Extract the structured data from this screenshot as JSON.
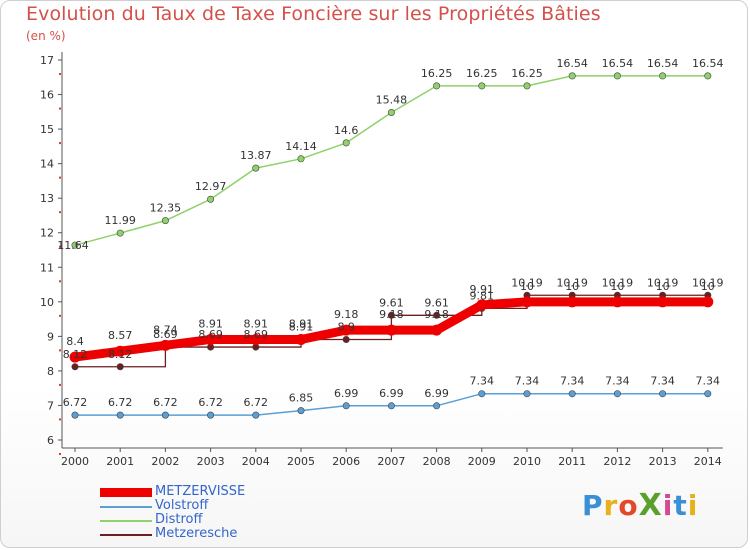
{
  "title": "Evolution du Taux de Taxe Foncière sur les Propriétés Bâties",
  "unit_label": "(en %)",
  "logo": {
    "text": "ProXiti",
    "letters": [
      "P",
      "r",
      "o",
      "X",
      "i",
      "t",
      "i"
    ],
    "colors": [
      "#3b8fd6",
      "#e8b01a",
      "#e04a2a",
      "#5aa02c",
      "#d44a8e",
      "#3b8fd6",
      "#e8b01a"
    ]
  },
  "chart_data": {
    "type": "line",
    "x": [
      "2000",
      "2001",
      "2002",
      "2003",
      "2004",
      "2005",
      "2006",
      "2007",
      "2008",
      "2009",
      "2010",
      "2011",
      "2012",
      "2013",
      "2014"
    ],
    "ylim": [
      6,
      17
    ],
    "yticks": [
      "6",
      "7",
      "8",
      "9",
      "10",
      "11",
      "12",
      "13",
      "14",
      "15",
      "16",
      "17"
    ],
    "grid": false,
    "legend_position": "bottom-left",
    "series": [
      {
        "name": "Volstroff",
        "color": "#5b9fd4",
        "values": [
          6.72,
          6.72,
          6.72,
          6.72,
          6.72,
          6.85,
          6.99,
          6.99,
          6.99,
          7.34,
          7.34,
          7.34,
          7.34,
          7.34,
          7.34
        ],
        "labels": [
          "6.72",
          "6.72",
          "6.72",
          "6.72",
          "6.72",
          "6.85",
          "6.99",
          "6.99",
          "6.99",
          "7.34",
          "7.34",
          "7.34",
          "7.34",
          "7.34",
          "7.34"
        ]
      },
      {
        "name": "Distroff",
        "color": "#8fd16a",
        "values": [
          11.64,
          11.99,
          12.35,
          12.97,
          13.87,
          14.14,
          14.6,
          15.48,
          16.25,
          16.25,
          16.25,
          16.54,
          16.54,
          16.54,
          16.54
        ],
        "labels": [
          "11.64",
          "11.99",
          "12.35",
          "12.97",
          "13.87",
          "14.14",
          "14.6",
          "15.48",
          "16.25",
          "16.25",
          "16.25",
          "16.54",
          "16.54",
          "16.54",
          "16.54"
        ]
      },
      {
        "name": "Metzeresche",
        "color": "#6b1f1f",
        "values": [
          8.12,
          8.12,
          8.69,
          8.69,
          8.69,
          8.91,
          8.91,
          9.61,
          9.61,
          9.81,
          10.19,
          10.19,
          10.19,
          10.19,
          10.19
        ],
        "labels": [
          "8.12",
          "8.12",
          "8.69",
          "8.69",
          "8.69",
          "8.91",
          "8.9",
          "9.61",
          "9.61",
          "9.81",
          "10.19",
          "10.19",
          "10.19",
          "10.19",
          "10.19"
        ]
      },
      {
        "name": "METZERVISSE",
        "color": "#ee0000",
        "values": [
          8.4,
          8.57,
          8.74,
          8.91,
          8.91,
          8.91,
          9.18,
          9.18,
          9.18,
          9.91,
          10.0,
          10.0,
          10.0,
          10.0,
          10.0
        ],
        "labels": [
          "8.4",
          "8.57",
          "8.74",
          "8.91",
          "8.91",
          "8.91",
          "9.18",
          "9.18",
          "9.18",
          "9.91",
          "10",
          "10",
          "10",
          "10",
          "10"
        ]
      }
    ],
    "legend": [
      "METZERVISSE",
      "Volstroff",
      "Distroff",
      "Metzeresche"
    ]
  }
}
